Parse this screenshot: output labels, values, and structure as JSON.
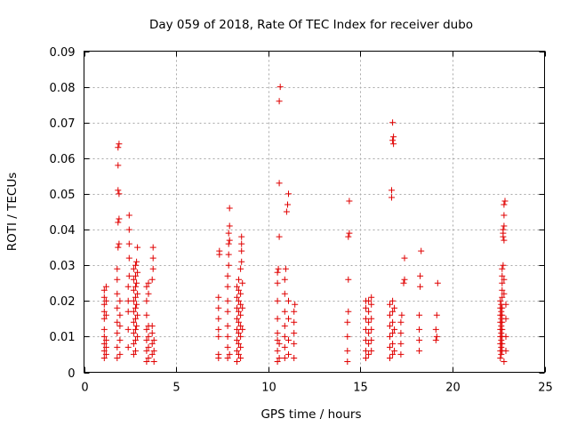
{
  "colors": {
    "series": "#e00000",
    "grid": "#a8a8a8",
    "frame": "#000000"
  },
  "chart_data": {
    "type": "scatter",
    "title": "Day 059 of 2018, Rate Of TEC Index for receiver dubo",
    "xlabel": "GPS time / hours",
    "ylabel": "ROTI / TECUs",
    "xlim": [
      0,
      25
    ],
    "ylim": [
      0,
      0.09
    ],
    "xticks": [
      0,
      5,
      10,
      15,
      20,
      25
    ],
    "xtick_labels": [
      "0",
      "5",
      "10",
      "15",
      "20",
      "25"
    ],
    "yticks": [
      0,
      0.01,
      0.02,
      0.03,
      0.04,
      0.05,
      0.06,
      0.07,
      0.08,
      0.09
    ],
    "ytick_labels": [
      "0",
      "0.01",
      "0.02",
      "0.03",
      "0.04",
      "0.05",
      "0.06",
      "0.07",
      "0.08",
      "0.09"
    ],
    "grid": true,
    "marker": "+",
    "series": [
      {
        "points": [
          [
            1.1,
            0.004
          ],
          [
            1.1,
            0.006
          ],
          [
            1.1,
            0.008
          ],
          [
            1.1,
            0.01
          ],
          [
            1.1,
            0.012
          ],
          [
            1.1,
            0.015
          ],
          [
            1.1,
            0.017
          ],
          [
            1.1,
            0.019
          ],
          [
            1.1,
            0.021
          ],
          [
            1.1,
            0.023
          ],
          [
            1.2,
            0.005
          ],
          [
            1.2,
            0.007
          ],
          [
            1.2,
            0.009
          ],
          [
            1.2,
            0.016
          ],
          [
            1.2,
            0.02
          ],
          [
            1.2,
            0.024
          ],
          [
            1.8,
            0.004
          ],
          [
            1.8,
            0.007
          ],
          [
            1.8,
            0.011
          ],
          [
            1.8,
            0.014
          ],
          [
            1.8,
            0.018
          ],
          [
            1.8,
            0.022
          ],
          [
            1.8,
            0.026
          ],
          [
            1.8,
            0.029
          ],
          [
            1.85,
            0.035
          ],
          [
            1.85,
            0.042
          ],
          [
            1.85,
            0.051
          ],
          [
            1.85,
            0.058
          ],
          [
            1.85,
            0.063
          ],
          [
            1.9,
            0.064
          ],
          [
            1.9,
            0.043
          ],
          [
            1.9,
            0.036
          ],
          [
            1.9,
            0.05
          ],
          [
            1.95,
            0.005
          ],
          [
            1.95,
            0.009
          ],
          [
            1.95,
            0.013
          ],
          [
            1.95,
            0.016
          ],
          [
            1.95,
            0.02
          ],
          [
            2.4,
            0.007
          ],
          [
            2.4,
            0.012
          ],
          [
            2.4,
            0.017
          ],
          [
            2.4,
            0.02
          ],
          [
            2.4,
            0.024
          ],
          [
            2.45,
            0.027
          ],
          [
            2.45,
            0.032
          ],
          [
            2.45,
            0.036
          ],
          [
            2.45,
            0.04
          ],
          [
            2.45,
            0.044
          ],
          [
            2.7,
            0.005
          ],
          [
            2.7,
            0.008
          ],
          [
            2.7,
            0.011
          ],
          [
            2.7,
            0.014
          ],
          [
            2.7,
            0.017
          ],
          [
            2.7,
            0.02
          ],
          [
            2.7,
            0.023
          ],
          [
            2.7,
            0.026
          ],
          [
            2.7,
            0.029
          ],
          [
            2.8,
            0.006
          ],
          [
            2.8,
            0.009
          ],
          [
            2.8,
            0.012
          ],
          [
            2.8,
            0.015
          ],
          [
            2.8,
            0.018
          ],
          [
            2.8,
            0.021
          ],
          [
            2.8,
            0.024
          ],
          [
            2.8,
            0.027
          ],
          [
            2.8,
            0.03
          ],
          [
            2.85,
            0.013
          ],
          [
            2.85,
            0.019
          ],
          [
            2.85,
            0.025
          ],
          [
            2.85,
            0.031
          ],
          [
            2.9,
            0.035
          ],
          [
            2.9,
            0.01
          ],
          [
            2.9,
            0.016
          ],
          [
            2.9,
            0.022
          ],
          [
            2.9,
            0.028
          ],
          [
            3.4,
            0.003
          ],
          [
            3.4,
            0.006
          ],
          [
            3.4,
            0.009
          ],
          [
            3.4,
            0.012
          ],
          [
            3.4,
            0.016
          ],
          [
            3.4,
            0.02
          ],
          [
            3.4,
            0.024
          ],
          [
            3.5,
            0.004
          ],
          [
            3.5,
            0.007
          ],
          [
            3.5,
            0.01
          ],
          [
            3.5,
            0.013
          ],
          [
            3.5,
            0.022
          ],
          [
            3.5,
            0.025
          ],
          [
            3.7,
            0.005
          ],
          [
            3.7,
            0.008
          ],
          [
            3.7,
            0.011
          ],
          [
            3.7,
            0.013
          ],
          [
            3.7,
            0.026
          ],
          [
            3.75,
            0.029
          ],
          [
            3.75,
            0.032
          ],
          [
            3.75,
            0.035
          ],
          [
            3.8,
            0.003
          ],
          [
            3.8,
            0.006
          ],
          [
            3.8,
            0.009
          ],
          [
            7.3,
            0.004
          ],
          [
            7.3,
            0.005
          ],
          [
            7.3,
            0.01
          ],
          [
            7.3,
            0.012
          ],
          [
            7.3,
            0.015
          ],
          [
            7.3,
            0.018
          ],
          [
            7.3,
            0.021
          ],
          [
            7.35,
            0.033
          ],
          [
            7.35,
            0.034
          ],
          [
            7.8,
            0.004
          ],
          [
            7.8,
            0.007
          ],
          [
            7.8,
            0.01
          ],
          [
            7.8,
            0.013
          ],
          [
            7.8,
            0.017
          ],
          [
            7.8,
            0.02
          ],
          [
            7.8,
            0.024
          ],
          [
            7.8,
            0.027
          ],
          [
            7.85,
            0.03
          ],
          [
            7.85,
            0.033
          ],
          [
            7.85,
            0.036
          ],
          [
            7.85,
            0.039
          ],
          [
            7.9,
            0.041
          ],
          [
            7.9,
            0.046
          ],
          [
            7.9,
            0.037
          ],
          [
            7.9,
            0.005
          ],
          [
            8.3,
            0.003
          ],
          [
            8.3,
            0.006
          ],
          [
            8.3,
            0.009
          ],
          [
            8.3,
            0.012
          ],
          [
            8.3,
            0.015
          ],
          [
            8.3,
            0.018
          ],
          [
            8.3,
            0.021
          ],
          [
            8.3,
            0.024
          ],
          [
            8.4,
            0.005
          ],
          [
            8.4,
            0.008
          ],
          [
            8.4,
            0.011
          ],
          [
            8.4,
            0.014
          ],
          [
            8.4,
            0.017
          ],
          [
            8.4,
            0.02
          ],
          [
            8.4,
            0.023
          ],
          [
            8.4,
            0.026
          ],
          [
            8.5,
            0.004
          ],
          [
            8.5,
            0.007
          ],
          [
            8.5,
            0.01
          ],
          [
            8.5,
            0.013
          ],
          [
            8.5,
            0.016
          ],
          [
            8.5,
            0.019
          ],
          [
            8.5,
            0.022
          ],
          [
            8.5,
            0.029
          ],
          [
            8.55,
            0.031
          ],
          [
            8.55,
            0.034
          ],
          [
            8.55,
            0.036
          ],
          [
            8.55,
            0.038
          ],
          [
            8.6,
            0.012
          ],
          [
            8.6,
            0.018
          ],
          [
            8.6,
            0.025
          ],
          [
            10.5,
            0.003
          ],
          [
            10.5,
            0.006
          ],
          [
            10.5,
            0.009
          ],
          [
            10.5,
            0.011
          ],
          [
            10.5,
            0.015
          ],
          [
            10.5,
            0.02
          ],
          [
            10.5,
            0.025
          ],
          [
            10.5,
            0.028
          ],
          [
            10.55,
            0.029
          ],
          [
            10.6,
            0.038
          ],
          [
            10.6,
            0.053
          ],
          [
            10.6,
            0.076
          ],
          [
            10.65,
            0.08
          ],
          [
            10.6,
            0.004
          ],
          [
            10.6,
            0.008
          ],
          [
            10.9,
            0.004
          ],
          [
            10.9,
            0.007
          ],
          [
            10.9,
            0.01
          ],
          [
            10.9,
            0.013
          ],
          [
            10.9,
            0.017
          ],
          [
            10.9,
            0.022
          ],
          [
            10.9,
            0.026
          ],
          [
            10.95,
            0.029
          ],
          [
            11.0,
            0.045
          ],
          [
            11.05,
            0.047
          ],
          [
            11.1,
            0.05
          ],
          [
            11.1,
            0.005
          ],
          [
            11.1,
            0.009
          ],
          [
            11.1,
            0.015
          ],
          [
            11.1,
            0.02
          ],
          [
            11.4,
            0.004
          ],
          [
            11.4,
            0.008
          ],
          [
            11.4,
            0.011
          ],
          [
            11.4,
            0.014
          ],
          [
            11.4,
            0.017
          ],
          [
            11.45,
            0.019
          ],
          [
            14.3,
            0.003
          ],
          [
            14.3,
            0.006
          ],
          [
            14.3,
            0.01
          ],
          [
            14.3,
            0.014
          ],
          [
            14.35,
            0.017
          ],
          [
            14.35,
            0.026
          ],
          [
            14.35,
            0.038
          ],
          [
            14.4,
            0.039
          ],
          [
            14.4,
            0.048
          ],
          [
            15.3,
            0.004
          ],
          [
            15.3,
            0.006
          ],
          [
            15.3,
            0.009
          ],
          [
            15.3,
            0.012
          ],
          [
            15.3,
            0.015
          ],
          [
            15.3,
            0.018
          ],
          [
            15.3,
            0.02
          ],
          [
            15.45,
            0.005
          ],
          [
            15.45,
            0.008
          ],
          [
            15.45,
            0.011
          ],
          [
            15.45,
            0.014
          ],
          [
            15.45,
            0.017
          ],
          [
            15.45,
            0.02
          ],
          [
            15.6,
            0.006
          ],
          [
            15.6,
            0.009
          ],
          [
            15.6,
            0.012
          ],
          [
            15.6,
            0.015
          ],
          [
            15.6,
            0.019
          ],
          [
            15.6,
            0.021
          ],
          [
            16.6,
            0.004
          ],
          [
            16.6,
            0.007
          ],
          [
            16.6,
            0.01
          ],
          [
            16.6,
            0.013
          ],
          [
            16.6,
            0.016
          ],
          [
            16.6,
            0.019
          ],
          [
            16.75,
            0.005
          ],
          [
            16.75,
            0.008
          ],
          [
            16.75,
            0.011
          ],
          [
            16.75,
            0.014
          ],
          [
            16.75,
            0.017
          ],
          [
            16.75,
            0.02
          ],
          [
            16.7,
            0.049
          ],
          [
            16.7,
            0.051
          ],
          [
            16.75,
            0.065
          ],
          [
            16.8,
            0.064
          ],
          [
            16.8,
            0.066
          ],
          [
            16.75,
            0.07
          ],
          [
            16.85,
            0.006
          ],
          [
            16.85,
            0.012
          ],
          [
            16.85,
            0.018
          ],
          [
            17.2,
            0.005
          ],
          [
            17.2,
            0.008
          ],
          [
            17.2,
            0.011
          ],
          [
            17.2,
            0.014
          ],
          [
            17.25,
            0.016
          ],
          [
            17.35,
            0.025
          ],
          [
            17.4,
            0.026
          ],
          [
            17.4,
            0.032
          ],
          [
            18.2,
            0.006
          ],
          [
            18.2,
            0.009
          ],
          [
            18.2,
            0.012
          ],
          [
            18.2,
            0.016
          ],
          [
            18.25,
            0.024
          ],
          [
            18.25,
            0.027
          ],
          [
            18.3,
            0.034
          ],
          [
            19.1,
            0.009
          ],
          [
            19.1,
            0.012
          ],
          [
            19.15,
            0.016
          ],
          [
            19.15,
            0.01
          ],
          [
            19.2,
            0.025
          ],
          [
            22.6,
            0.004
          ],
          [
            22.6,
            0.006
          ],
          [
            22.6,
            0.008
          ],
          [
            22.6,
            0.01
          ],
          [
            22.6,
            0.012
          ],
          [
            22.6,
            0.014
          ],
          [
            22.6,
            0.016
          ],
          [
            22.6,
            0.018
          ],
          [
            22.6,
            0.02
          ],
          [
            22.65,
            0.005
          ],
          [
            22.65,
            0.007
          ],
          [
            22.65,
            0.009
          ],
          [
            22.65,
            0.011
          ],
          [
            22.65,
            0.013
          ],
          [
            22.65,
            0.015
          ],
          [
            22.65,
            0.017
          ],
          [
            22.65,
            0.019
          ],
          [
            22.7,
            0.006
          ],
          [
            22.7,
            0.008
          ],
          [
            22.7,
            0.01
          ],
          [
            22.7,
            0.012
          ],
          [
            22.7,
            0.014
          ],
          [
            22.7,
            0.016
          ],
          [
            22.7,
            0.018
          ],
          [
            22.7,
            0.021
          ],
          [
            22.7,
            0.023
          ],
          [
            22.7,
            0.025
          ],
          [
            22.7,
            0.027
          ],
          [
            22.7,
            0.029
          ],
          [
            22.75,
            0.03
          ],
          [
            22.75,
            0.038
          ],
          [
            22.75,
            0.039
          ],
          [
            22.75,
            0.04
          ],
          [
            22.8,
            0.037
          ],
          [
            22.8,
            0.041
          ],
          [
            22.8,
            0.044
          ],
          [
            22.8,
            0.047
          ],
          [
            22.85,
            0.048
          ],
          [
            22.8,
            0.003
          ],
          [
            22.8,
            0.022
          ],
          [
            22.8,
            0.026
          ],
          [
            22.9,
            0.006
          ],
          [
            22.9,
            0.01
          ],
          [
            22.9,
            0.015
          ],
          [
            22.9,
            0.019
          ]
        ]
      }
    ]
  }
}
